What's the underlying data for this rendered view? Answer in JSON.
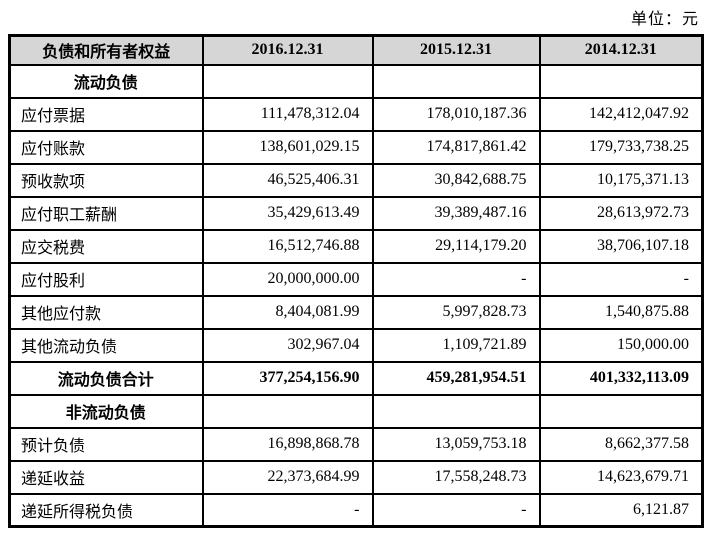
{
  "meta": {
    "unit_label": "单位：元"
  },
  "table": {
    "columns": [
      "负债和所有者权益",
      "2016.12.31",
      "2015.12.31",
      "2014.12.31"
    ],
    "rows": [
      {
        "type": "section",
        "label": "流动负债",
        "values": [
          "",
          "",
          ""
        ]
      },
      {
        "type": "item",
        "label": "应付票据",
        "values": [
          "111,478,312.04",
          "178,010,187.36",
          "142,412,047.92"
        ]
      },
      {
        "type": "item",
        "label": "应付账款",
        "values": [
          "138,601,029.15",
          "174,817,861.42",
          "179,733,738.25"
        ]
      },
      {
        "type": "item",
        "label": "预收款项",
        "values": [
          "46,525,406.31",
          "30,842,688.75",
          "10,175,371.13"
        ]
      },
      {
        "type": "item",
        "label": "应付职工薪酬",
        "values": [
          "35,429,613.49",
          "39,389,487.16",
          "28,613,972.73"
        ]
      },
      {
        "type": "item",
        "label": "应交税费",
        "values": [
          "16,512,746.88",
          "29,114,179.20",
          "38,706,107.18"
        ]
      },
      {
        "type": "item",
        "label": "应付股利",
        "values": [
          "20,000,000.00",
          "-",
          "-"
        ]
      },
      {
        "type": "item",
        "label": "其他应付款",
        "values": [
          "8,404,081.99",
          "5,997,828.73",
          "1,540,875.88"
        ]
      },
      {
        "type": "item",
        "label": "其他流动负债",
        "values": [
          "302,967.04",
          "1,109,721.89",
          "150,000.00"
        ]
      },
      {
        "type": "total",
        "label": "流动负债合计",
        "values": [
          "377,254,156.90",
          "459,281,954.51",
          "401,332,113.09"
        ]
      },
      {
        "type": "section",
        "label": "非流动负债",
        "values": [
          "",
          "",
          ""
        ]
      },
      {
        "type": "item",
        "label": "预计负债",
        "values": [
          "16,898,868.78",
          "13,059,753.18",
          "8,662,377.58"
        ]
      },
      {
        "type": "item",
        "label": "递延收益",
        "values": [
          "22,373,684.99",
          "17,558,248.73",
          "14,623,679.71"
        ]
      },
      {
        "type": "item",
        "label": "递延所得税负债",
        "values": [
          "-",
          "-",
          "6,121.87"
        ]
      }
    ]
  }
}
